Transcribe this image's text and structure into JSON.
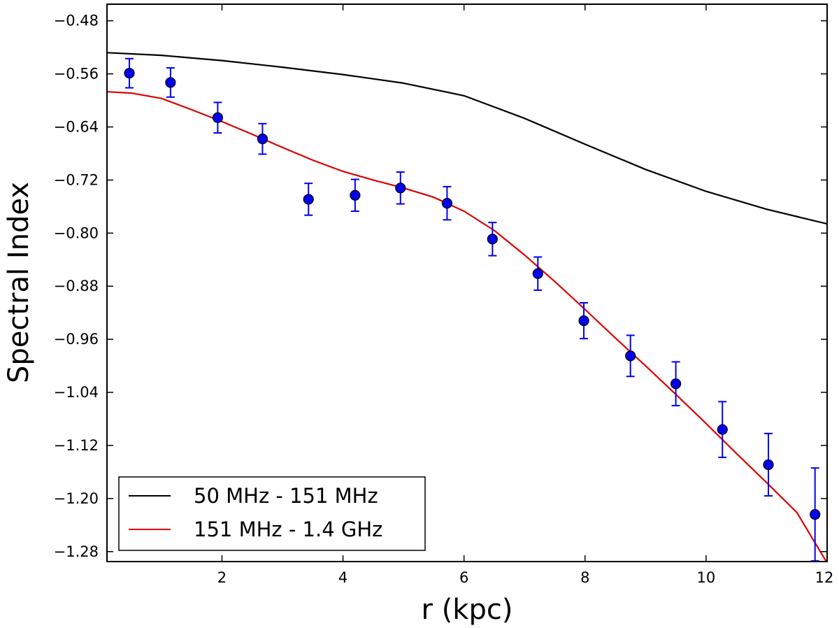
{
  "chart_data": {
    "type": "line",
    "title": "",
    "xlabel": "r (kpc)",
    "ylabel": "Spectral Index",
    "xlim": [
      0.1,
      12
    ],
    "ylim": [
      -1.295,
      -0.455
    ],
    "x_ticks": [
      2,
      4,
      6,
      8,
      10,
      12
    ],
    "x_tick_labels": [
      "2",
      "4",
      "6",
      "8",
      "10",
      "12"
    ],
    "y_ticks": [
      -0.48,
      -0.56,
      -0.64,
      -0.72,
      -0.8,
      -0.88,
      -0.96,
      -1.04,
      -1.12,
      -1.2,
      -1.28
    ],
    "y_tick_labels": [
      "−0.48",
      "−0.56",
      "−0.64",
      "−0.72",
      "−0.80",
      "−0.88",
      "−0.96",
      "−1.04",
      "−1.12",
      "−1.20",
      "−1.28"
    ],
    "grid": false,
    "legend_position": "bottom-left",
    "series": [
      {
        "name": "50 MHz - 151 MHz",
        "color": "#000000",
        "x": [
          0.1,
          1,
          2,
          3,
          4,
          5,
          6,
          7,
          8,
          9,
          10,
          11,
          12
        ],
        "y": [
          -0.528,
          -0.532,
          -0.54,
          -0.55,
          -0.561,
          -0.574,
          -0.593,
          -0.627,
          -0.666,
          -0.704,
          -0.737,
          -0.764,
          -0.786
        ]
      },
      {
        "name": "151 MHz - 1.4 GHz",
        "color": "#dd0000",
        "x": [
          0.1,
          0.5,
          1,
          1.5,
          2,
          2.5,
          3,
          3.5,
          4,
          4.5,
          5,
          5.5,
          6,
          6.5,
          7,
          7.5,
          8,
          8.5,
          9,
          9.5,
          10,
          10.5,
          11,
          11.5,
          12
        ],
        "y": [
          -0.587,
          -0.589,
          -0.597,
          -0.614,
          -0.632,
          -0.651,
          -0.671,
          -0.69,
          -0.707,
          -0.72,
          -0.732,
          -0.746,
          -0.767,
          -0.796,
          -0.833,
          -0.873,
          -0.915,
          -0.958,
          -1.0,
          -1.043,
          -1.087,
          -1.132,
          -1.176,
          -1.221,
          -1.297
        ]
      }
    ],
    "points": {
      "name": "data",
      "color": "#0000ee",
      "x": [
        0.47,
        1.15,
        1.93,
        2.67,
        3.43,
        4.2,
        4.95,
        5.72,
        6.47,
        7.22,
        7.98,
        8.75,
        9.5,
        10.27,
        11.03,
        11.8
      ],
      "y": [
        -0.559,
        -0.573,
        -0.626,
        -0.658,
        -0.749,
        -0.743,
        -0.732,
        -0.755,
        -0.809,
        -0.861,
        -0.932,
        -0.985,
        -1.027,
        -1.096,
        -1.149,
        -1.224
      ],
      "yerr": [
        0.022,
        0.022,
        0.023,
        0.023,
        0.024,
        0.024,
        0.024,
        0.025,
        0.025,
        0.025,
        0.027,
        0.031,
        0.033,
        0.042,
        0.047,
        0.07
      ]
    }
  }
}
